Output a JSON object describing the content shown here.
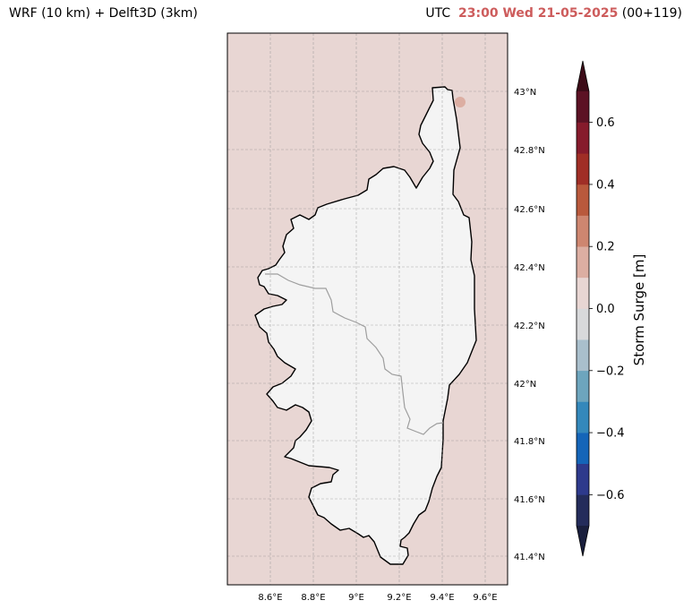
{
  "header": {
    "left_title": "WRF (10 km) + Delft3D (3km)",
    "right_prefix": "UTC",
    "right_time": "23:00 Wed 21-05-2025",
    "right_suffix": "(00+119)"
  },
  "map": {
    "region": "Corsica",
    "background_value_color": "#e8d6d3",
    "land_color": "#f4f4f4",
    "lon_labels": [
      "8.6°E",
      "8.8°E",
      "9°E",
      "9.2°E",
      "9.4°E",
      "9.6°E"
    ],
    "lat_labels": [
      "43°N",
      "42.8°N",
      "42.6°N",
      "42.4°N",
      "42.2°N",
      "42°N",
      "41.8°N",
      "41.6°N",
      "41.4°N"
    ],
    "gridlines": true
  },
  "colorbar": {
    "label": "Storm Surge [m]",
    "tick_labels": [
      "0.6",
      "0.4",
      "0.2",
      "0.0",
      "−0.2",
      "−0.4",
      "−0.6"
    ],
    "levels": [
      -0.7,
      -0.6,
      -0.5,
      -0.4,
      -0.3,
      -0.2,
      -0.1,
      0.0,
      0.1,
      0.2,
      0.3,
      0.4,
      0.5,
      0.6,
      0.7
    ],
    "colors": [
      "#242c5b",
      "#2e3a8c",
      "#1565b8",
      "#3488bb",
      "#6da5bd",
      "#a9bfcc",
      "#d8d9db",
      "#e8d6d3",
      "#dcaea2",
      "#ce8670",
      "#b9593c",
      "#a02e26",
      "#861b2c",
      "#5c1224"
    ],
    "extend_low_color": "#1a1f3d",
    "extend_high_color": "#3d0c18"
  }
}
